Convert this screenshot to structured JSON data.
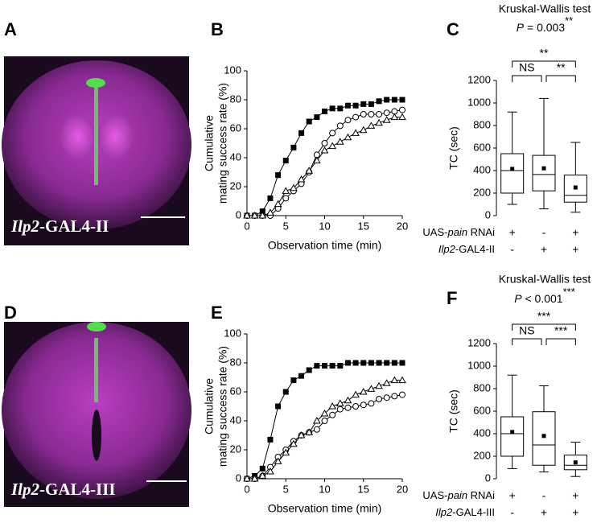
{
  "panel_labels": [
    "A",
    "B",
    "C",
    "D",
    "E",
    "F"
  ],
  "images": [
    {
      "label_italic": "Ilp2",
      "label_rest": "-GAL4-II"
    },
    {
      "label_italic": "Ilp2",
      "label_rest": "-GAL4-III"
    }
  ],
  "chart_data": [
    {
      "type": "line",
      "x_label": "Observation time (min)",
      "y_label": [
        "Cumulative",
        "mating success rate (%)"
      ],
      "x": [
        0,
        1,
        2,
        3,
        4,
        5,
        6,
        7,
        8,
        9,
        10,
        11,
        12,
        13,
        14,
        15,
        16,
        17,
        18,
        19,
        20
      ],
      "xlim": [
        0,
        20
      ],
      "xticks": [
        0,
        5,
        10,
        15,
        20
      ],
      "ylim": [
        0,
        100
      ],
      "yticks": [
        0,
        20,
        40,
        60,
        80,
        100
      ],
      "series": [
        {
          "color": "#000000",
          "marker": "square-filled",
          "values": [
            0,
            0,
            3,
            12,
            28,
            38,
            47,
            57,
            65,
            68,
            72,
            74,
            74,
            76,
            76,
            77,
            77,
            79,
            80,
            80,
            80
          ]
        },
        {
          "color": "#000000",
          "marker": "circle-open",
          "values": [
            0,
            0,
            0,
            0,
            5,
            12,
            17,
            22,
            30,
            42,
            50,
            57,
            62,
            66,
            68,
            70,
            70,
            70,
            71,
            72,
            73
          ]
        },
        {
          "color": "#000000",
          "marker": "triangle-open",
          "values": [
            0,
            0,
            0,
            2,
            8,
            17,
            19,
            25,
            31,
            38,
            45,
            48,
            51,
            54,
            57,
            59,
            62,
            64,
            66,
            68,
            68
          ]
        }
      ]
    },
    {
      "type": "box",
      "title": "Kruskal-Wallis test",
      "statistic": {
        "italic": "P",
        "rest": " = 0.003",
        "stars": "**"
      },
      "y_label": "TC (sec)",
      "ylim": [
        0,
        1200
      ],
      "yticks": [
        0,
        200,
        400,
        600,
        800,
        1000,
        1200
      ],
      "boxes": [
        {
          "whisker_low": 100,
          "q1": 200,
          "median": 400,
          "q3": 550,
          "whisker_high": 920,
          "mean": 415
        },
        {
          "whisker_low": 60,
          "q1": 220,
          "median": 365,
          "q3": 535,
          "whisker_high": 1040,
          "mean": 420
        },
        {
          "whisker_low": 30,
          "q1": 120,
          "median": 180,
          "q3": 360,
          "whisker_high": 650,
          "mean": 250
        }
      ],
      "significance": [
        "NS",
        "**",
        "**"
      ],
      "genotype_rows": [
        {
          "prefix": "UAS-",
          "italic": "pain",
          "suffix": " RNAi",
          "signs": [
            "+",
            "-",
            "+"
          ]
        },
        {
          "prefix": "",
          "italic": "Ilp2",
          "suffix": "-GAL4-II",
          "signs": [
            "-",
            "+",
            "+"
          ]
        }
      ]
    },
    {
      "type": "line",
      "x_label": "Observation time (min)",
      "y_label": [
        "Cumulative",
        "mating success rate (%)"
      ],
      "x": [
        0,
        1,
        2,
        3,
        4,
        5,
        6,
        7,
        8,
        9,
        10,
        11,
        12,
        13,
        14,
        15,
        16,
        17,
        18,
        19,
        20
      ],
      "xlim": [
        0,
        20
      ],
      "xticks": [
        0,
        5,
        10,
        15,
        20
      ],
      "ylim": [
        0,
        100
      ],
      "yticks": [
        0,
        20,
        40,
        60,
        80,
        100
      ],
      "series": [
        {
          "color": "#000000",
          "marker": "square-filled",
          "values": [
            0,
            2,
            7,
            27,
            50,
            60,
            68,
            71,
            75,
            78,
            78,
            78,
            78,
            80,
            80,
            80,
            80,
            80,
            80,
            80,
            80
          ]
        },
        {
          "color": "#000000",
          "marker": "circle-open",
          "values": [
            0,
            0,
            2,
            8,
            15,
            20,
            26,
            30,
            32,
            34,
            40,
            44,
            48,
            49,
            50,
            51,
            52,
            55,
            56,
            57,
            58
          ]
        },
        {
          "color": "#000000",
          "marker": "triangle-open",
          "values": [
            0,
            0,
            2,
            5,
            12,
            18,
            24,
            30,
            32,
            40,
            45,
            50,
            52,
            54,
            58,
            60,
            62,
            64,
            66,
            68,
            68
          ]
        }
      ]
    },
    {
      "type": "box",
      "title": "Kruskal-Wallis test",
      "statistic": {
        "italic": "P",
        "rest": " < 0.001",
        "stars": "***"
      },
      "y_label": "TC (sec)",
      "ylim": [
        0,
        1200
      ],
      "yticks": [
        0,
        200,
        400,
        600,
        800,
        1000,
        1200
      ],
      "boxes": [
        {
          "whisker_low": 90,
          "q1": 200,
          "median": 400,
          "q3": 550,
          "whisker_high": 920,
          "mean": 415
        },
        {
          "whisker_low": 60,
          "q1": 120,
          "median": 300,
          "q3": 595,
          "whisker_high": 825,
          "mean": 380
        },
        {
          "whisker_low": 20,
          "q1": 80,
          "median": 120,
          "q3": 210,
          "whisker_high": 325,
          "mean": 145
        }
      ],
      "significance": [
        "NS",
        "***",
        "***"
      ],
      "genotype_rows": [
        {
          "prefix": "UAS-",
          "italic": "pain",
          "suffix": " RNAi",
          "signs": [
            "+",
            "-",
            "+"
          ]
        },
        {
          "prefix": "",
          "italic": "Ilp2",
          "suffix": "-GAL4-III",
          "signs": [
            "-",
            "+",
            "+"
          ]
        }
      ]
    }
  ]
}
